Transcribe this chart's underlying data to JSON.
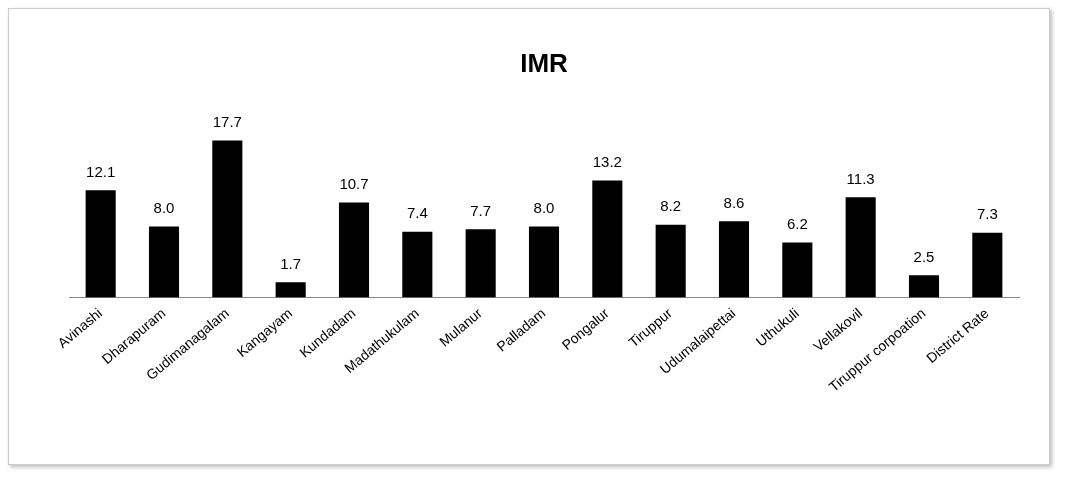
{
  "chart_data": {
    "type": "bar",
    "title": "IMR",
    "categories": [
      "Avinashi",
      "Dharapuram",
      "Gudimanagalam",
      "Kangayam",
      "Kundadam",
      "Madathukulam",
      "Mulanur",
      "Palladam",
      "Pongalur",
      "Tiruppur",
      "Udumalaipettai",
      "Uthukuli",
      "Vellakovil",
      "Tiruppur corpoation",
      "District Rate"
    ],
    "values": [
      12.1,
      8.0,
      17.7,
      1.7,
      10.7,
      7.4,
      7.7,
      8.0,
      13.2,
      8.2,
      8.6,
      6.2,
      11.3,
      2.5,
      7.3
    ],
    "value_labels": [
      "12.1",
      "8.0",
      "17.7",
      "1.7",
      "10.7",
      "7.4",
      "7.7",
      "8.0",
      "13.2",
      "8.2",
      "8.6",
      "6.2",
      "11.3",
      "2.5",
      "7.3"
    ],
    "color": "#000000",
    "grid": false,
    "legend": false,
    "tick_labels": "x"
  }
}
